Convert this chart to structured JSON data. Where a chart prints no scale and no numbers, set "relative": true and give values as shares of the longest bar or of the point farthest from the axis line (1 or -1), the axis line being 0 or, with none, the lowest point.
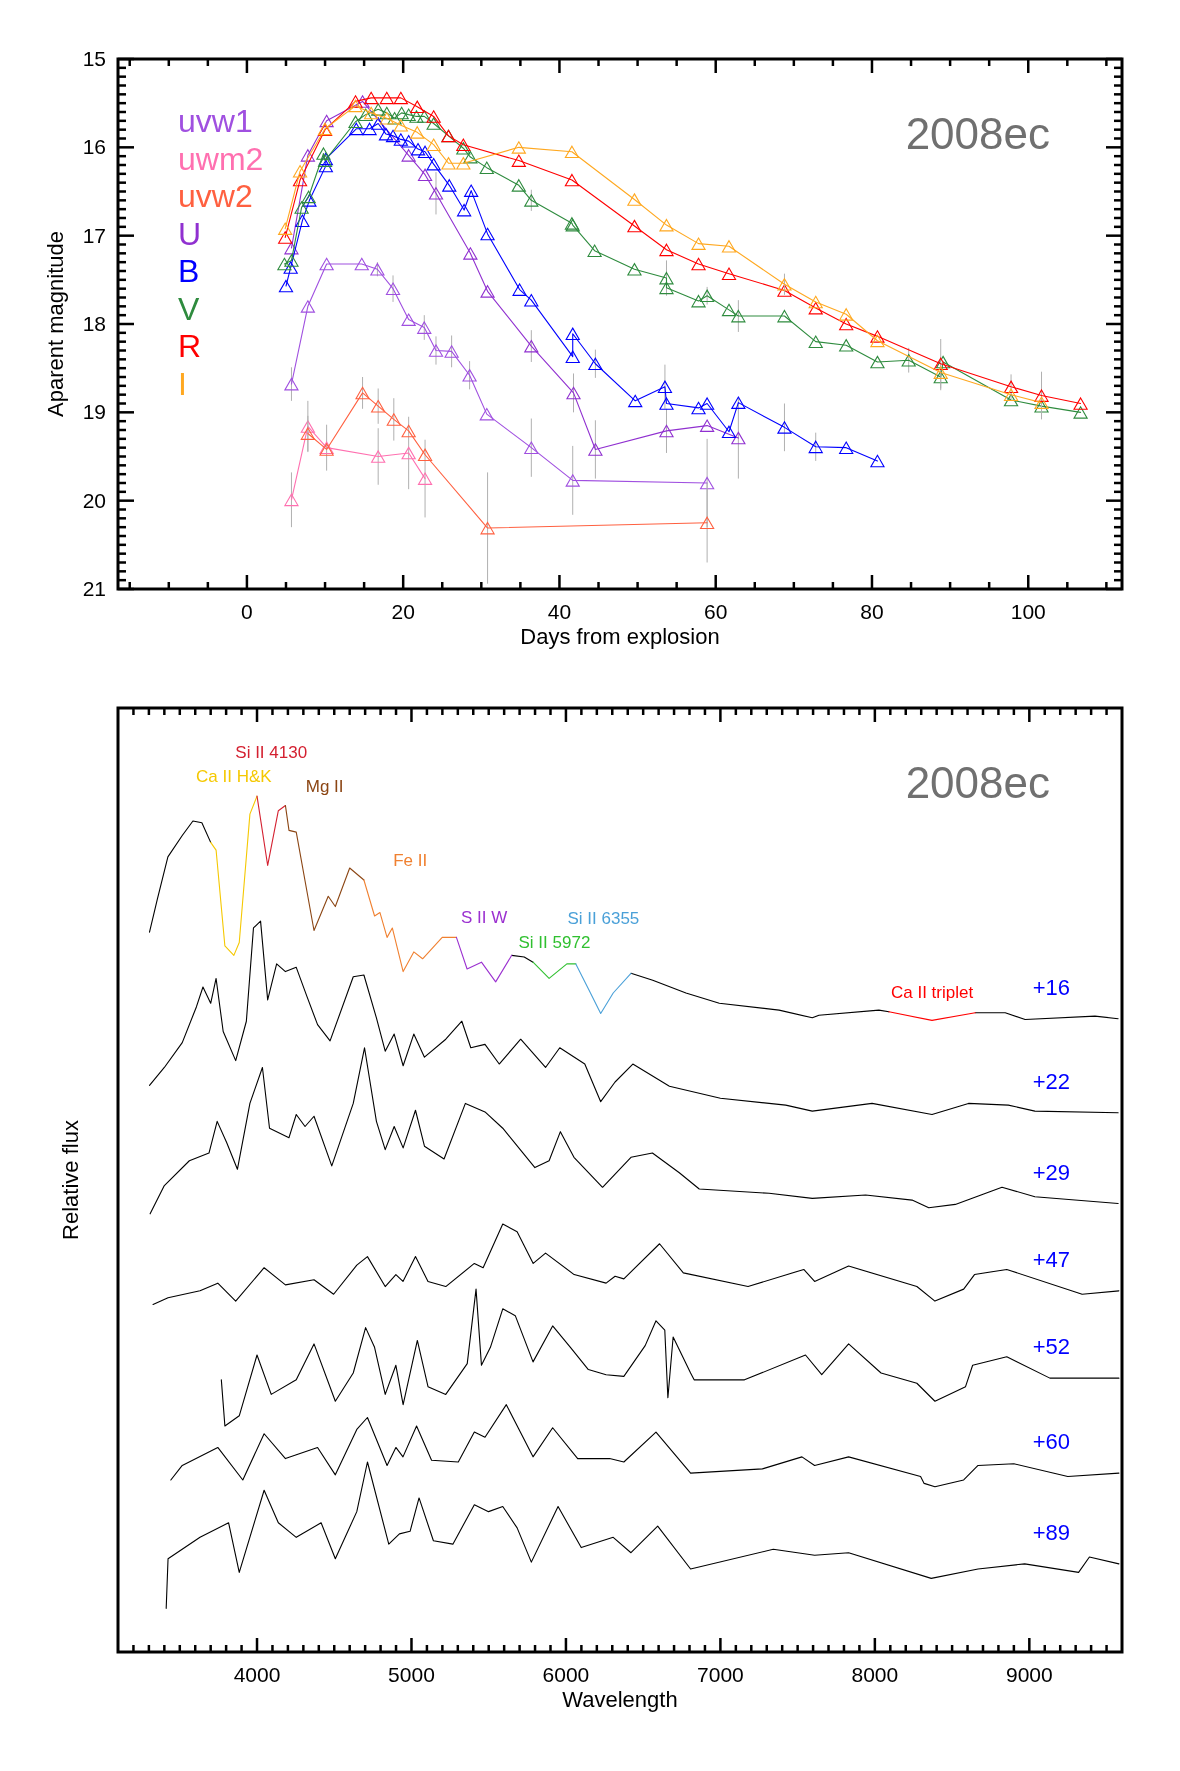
{
  "chart_data": [
    {
      "type": "line",
      "xlabel": "Days from explosion",
      "ylabel": "Aparent magnitude",
      "marker": "triangle",
      "legend": "top left",
      "xlim": [
        -16.5,
        112
      ],
      "ylim": [
        21,
        15
      ],
      "xticks": [
        {
          "value": -15,
          "label": null
        },
        {
          "value": -10,
          "label": null
        },
        {
          "value": -5,
          "label": null
        },
        0,
        {
          "value": 5,
          "label": null
        },
        {
          "value": 10,
          "label": null
        },
        {
          "value": 15,
          "label": null
        },
        20,
        {
          "value": 25,
          "label": null
        },
        {
          "value": 30,
          "label": null
        },
        {
          "value": 35,
          "label": null
        },
        40,
        {
          "value": 45,
          "label": null
        },
        {
          "value": 50,
          "label": null
        },
        {
          "value": 55,
          "label": null
        },
        60,
        {
          "value": 65,
          "label": null
        },
        {
          "value": 70,
          "label": null
        },
        {
          "value": 75,
          "label": null
        },
        80,
        {
          "value": 85,
          "label": null
        },
        {
          "value": 90,
          "label": null
        },
        {
          "value": 95,
          "label": null
        },
        100,
        {
          "value": 105,
          "label": null
        },
        {
          "value": 110,
          "label": null
        }
      ],
      "yticks": [
        15,
        {
          "value": 15.1,
          "label": null
        },
        {
          "value": 15.2,
          "label": null
        },
        {
          "value": 15.3,
          "label": null
        },
        {
          "value": 15.4,
          "label": null
        },
        {
          "value": 15.5,
          "label": null
        },
        {
          "value": 15.6,
          "label": null
        },
        {
          "value": 15.7,
          "label": null
        },
        {
          "value": 15.8,
          "label": null
        },
        {
          "value": 15.9,
          "label": null
        },
        16,
        {
          "value": 16.1,
          "label": null
        },
        {
          "value": 16.2,
          "label": null
        },
        {
          "value": 16.3,
          "label": null
        },
        {
          "value": 16.4,
          "label": null
        },
        {
          "value": 16.5,
          "label": null
        },
        {
          "value": 16.6,
          "label": null
        },
        {
          "value": 16.7,
          "label": null
        },
        {
          "value": 16.8,
          "label": null
        },
        {
          "value": 16.9,
          "label": null
        },
        17,
        {
          "value": 17.1,
          "label": null
        },
        {
          "value": 17.2,
          "label": null
        },
        {
          "value": 17.3,
          "label": null
        },
        {
          "value": 17.4,
          "label": null
        },
        {
          "value": 17.5,
          "label": null
        },
        {
          "value": 17.6,
          "label": null
        },
        {
          "value": 17.7,
          "label": null
        },
        {
          "value": 17.8,
          "label": null
        },
        {
          "value": 17.9,
          "label": null
        },
        18,
        {
          "value": 18.1,
          "label": null
        },
        {
          "value": 18.2,
          "label": null
        },
        {
          "value": 18.3,
          "label": null
        },
        {
          "value": 18.4,
          "label": null
        },
        {
          "value": 18.5,
          "label": null
        },
        {
          "value": 18.6,
          "label": null
        },
        {
          "value": 18.7,
          "label": null
        },
        {
          "value": 18.8,
          "label": null
        },
        {
          "value": 18.9,
          "label": null
        },
        19,
        {
          "value": 19.1,
          "label": null
        },
        {
          "value": 19.2,
          "label": null
        },
        {
          "value": 19.3,
          "label": null
        },
        {
          "value": 19.4,
          "label": null
        },
        {
          "value": 19.5,
          "label": null
        },
        {
          "value": 19.6,
          "label": null
        },
        {
          "value": 19.7,
          "label": null
        },
        {
          "value": 19.8,
          "label": null
        },
        {
          "value": 19.9,
          "label": null
        },
        20,
        {
          "value": 20.1,
          "label": null
        },
        {
          "value": 20.2,
          "label": null
        },
        {
          "value": 20.3,
          "label": null
        },
        {
          "value": 20.4,
          "label": null
        },
        {
          "value": 20.5,
          "label": null
        },
        {
          "value": 20.6,
          "label": null
        },
        {
          "value": 20.7,
          "label": null
        },
        {
          "value": 20.8,
          "label": null
        },
        {
          "value": 20.9,
          "label": null
        },
        21
      ],
      "annotations": [
        "2008ec"
      ],
      "series": [
        {
          "name": "uvw1",
          "color": "#a050e0",
          "x": [
            5.7,
            7.8,
            10.2,
            14.7,
            16.7,
            18.7,
            20.7,
            22.7,
            24.2,
            26.2,
            28.5,
            30.7,
            36.4,
            41.7,
            58.9
          ],
          "values": [
            18.68,
            17.8,
            17.32,
            17.32,
            17.38,
            17.6,
            17.95,
            18.04,
            18.3,
            18.31,
            18.58,
            19.02,
            19.4,
            19.77,
            19.8
          ],
          "errors": [
            0.19,
            null,
            null,
            null,
            0.08,
            0.15,
            null,
            0.14,
            0.16,
            0.18,
            0.16,
            null,
            0.33,
            0.39,
            0.5
          ]
        },
        {
          "name": "uwm2",
          "color": "#ff70b0",
          "x": [
            5.7,
            7.8,
            10.2,
            16.8,
            20.7,
            22.8
          ],
          "values": [
            19.99,
            19.16,
            19.4,
            19.5,
            19.46,
            19.75
          ],
          "errors": [
            0.31,
            0.29,
            0.26,
            0.32,
            0.41,
            0.44
          ]
        },
        {
          "name": "uvw2",
          "color": "#ff6040",
          "x": [
            7.8,
            10.2,
            14.8,
            16.8,
            18.8,
            20.7,
            22.8,
            30.8,
            58.9
          ],
          "values": [
            19.24,
            19.42,
            18.78,
            18.93,
            19.08,
            19.21,
            19.48,
            20.31,
            20.25
          ],
          "errors": [
            0.2,
            null,
            0.18,
            0.2,
            0.24,
            null,
            null,
            0.63,
            0.45
          ]
        },
        {
          "name": "U",
          "color": "#9030d0",
          "x": [
            5.7,
            7.8,
            10.2,
            14.8,
            20.7,
            22.8,
            24.2,
            28.6,
            30.8,
            36.4,
            41.8,
            44.6,
            53.7,
            58.9,
            62.9
          ],
          "values": [
            17.14,
            16.09,
            15.7,
            15.48,
            16.09,
            16.31,
            16.52,
            17.2,
            17.63,
            18.25,
            18.78,
            19.42,
            19.21,
            19.15,
            19.29
          ],
          "errors": [
            null,
            null,
            null,
            null,
            null,
            null,
            0.24,
            null,
            null,
            0.18,
            0.22,
            0.33,
            0.25,
            null,
            0.46
          ]
        },
        {
          "name": "B",
          "color": "#0000ff",
          "x": [
            5.0,
            5.6,
            7.1,
            8.0,
            10.1,
            10.1,
            14.0,
            15.7,
            16.8,
            17.8,
            18.7,
            19.7,
            20.7,
            21.9,
            22.8,
            23.9,
            25.9,
            27.8,
            28.7,
            30.8,
            34.9,
            36.4,
            41.7,
            41.7,
            44.6,
            49.7,
            53.5,
            53.7,
            57.8,
            58.9,
            61.7,
            62.9,
            68.8,
            72.8,
            76.7,
            80.7
          ],
          "values": [
            17.57,
            17.36,
            16.83,
            16.6,
            16.21,
            16.13,
            15.79,
            15.79,
            15.73,
            15.85,
            15.87,
            15.91,
            15.93,
            16.02,
            16.05,
            16.19,
            16.43,
            16.71,
            16.49,
            16.98,
            17.61,
            17.73,
            18.37,
            18.11,
            18.45,
            18.87,
            18.71,
            18.9,
            18.95,
            18.9,
            19.22,
            18.89,
            19.17,
            19.39,
            19.4,
            19.55
          ],
          "errors": [
            null,
            null,
            null,
            null,
            null,
            null,
            null,
            null,
            null,
            null,
            null,
            null,
            null,
            null,
            null,
            null,
            null,
            null,
            null,
            null,
            null,
            null,
            null,
            null,
            0.16,
            null,
            0.25,
            null,
            null,
            null,
            null,
            null,
            0.27,
            0.16,
            null,
            null
          ]
        },
        {
          "name": "V",
          "color": "#2e8b3e",
          "x": [
            4.8,
            5.7,
            7.0,
            7.9,
            9.8,
            10.0,
            13.9,
            15.2,
            16.8,
            17.9,
            18.9,
            19.8,
            20.7,
            21.7,
            22.7,
            23.9,
            25.8,
            27.7,
            28.6,
            30.7,
            34.8,
            36.4,
            41.6,
            41.7,
            44.5,
            49.6,
            53.7,
            53.7,
            57.8,
            58.9,
            61.7,
            62.9,
            68.8,
            72.8,
            76.7,
            80.7,
            84.7,
            88.8,
            89.1,
            97.8,
            101.7,
            106.7
          ],
          "values": [
            17.32,
            17.28,
            16.68,
            16.56,
            16.07,
            16.15,
            15.71,
            15.63,
            15.57,
            15.61,
            15.67,
            15.61,
            15.63,
            15.65,
            15.65,
            15.73,
            15.87,
            16.01,
            16.11,
            16.23,
            16.43,
            16.6,
            16.86,
            16.88,
            17.17,
            17.38,
            17.48,
            17.59,
            17.74,
            17.68,
            17.84,
            17.91,
            17.91,
            18.2,
            18.24,
            18.43,
            18.41,
            18.6,
            18.43,
            18.86,
            18.93,
            19.0
          ],
          "errors": [
            null,
            null,
            null,
            null,
            null,
            null,
            null,
            null,
            null,
            null,
            null,
            null,
            null,
            null,
            null,
            null,
            null,
            null,
            null,
            null,
            null,
            0.12,
            null,
            null,
            null,
            null,
            0.2,
            null,
            null,
            0.1,
            null,
            0.18,
            null,
            null,
            null,
            null,
            0.14,
            0.15,
            null,
            null,
            null,
            null
          ]
        },
        {
          "name": "R",
          "color": "#ff0000",
          "x": [
            4.9,
            6.8,
            10.0,
            13.9,
            15.9,
            17.9,
            19.7,
            21.8,
            23.9,
            25.8,
            27.7,
            34.8,
            41.6,
            49.6,
            53.7,
            57.8,
            61.7,
            68.8,
            72.8,
            76.7,
            80.7,
            88.8,
            97.8,
            101.7,
            106.7
          ],
          "values": [
            17.02,
            16.37,
            15.8,
            15.48,
            15.44,
            15.44,
            15.44,
            15.54,
            15.65,
            15.87,
            15.97,
            16.15,
            16.37,
            16.89,
            17.16,
            17.32,
            17.43,
            17.62,
            17.82,
            18.0,
            18.14,
            18.45,
            18.71,
            18.81,
            18.9
          ],
          "errors": [
            null,
            null,
            null,
            null,
            null,
            null,
            null,
            null,
            null,
            null,
            null,
            null,
            null,
            null,
            null,
            null,
            null,
            null,
            null,
            null,
            null,
            0.28,
            0.14,
            0.27,
            null
          ]
        },
        {
          "name": "I",
          "color": "#ffa820",
          "x": [
            4.9,
            6.8,
            10.0,
            13.9,
            15.9,
            17.9,
            19.7,
            21.8,
            23.9,
            25.8,
            27.7,
            34.8,
            41.6,
            49.6,
            53.7,
            57.8,
            61.7,
            68.8,
            72.8,
            76.7,
            80.7,
            88.8,
            97.8,
            101.7
          ],
          "values": [
            16.92,
            16.27,
            15.79,
            15.53,
            15.61,
            15.67,
            15.75,
            15.83,
            15.97,
            16.18,
            16.18,
            16.0,
            16.05,
            16.59,
            16.88,
            17.09,
            17.12,
            17.55,
            17.75,
            17.89,
            18.19,
            18.55,
            18.8,
            18.89
          ],
          "errors": [
            null,
            null,
            null,
            null,
            null,
            null,
            null,
            null,
            null,
            null,
            null,
            null,
            null,
            null,
            null,
            null,
            null,
            0.12,
            null,
            null,
            null,
            null,
            null,
            null
          ]
        }
      ]
    },
    {
      "type": "line",
      "xlabel": "Wavelength",
      "ylabel": "Relative flux",
      "relative": true,
      "xlim": [
        3100,
        9600
      ],
      "xticks": [
        {
          "value": 3200,
          "label": null
        },
        {
          "value": 3300,
          "label": null
        },
        {
          "value": 3400,
          "label": null
        },
        {
          "value": 3500,
          "label": null
        },
        {
          "value": 3600,
          "label": null
        },
        {
          "value": 3700,
          "label": null
        },
        {
          "value": 3800,
          "label": null
        },
        {
          "value": 3900,
          "label": null
        },
        4000,
        {
          "value": 4100,
          "label": null
        },
        {
          "value": 4200,
          "label": null
        },
        {
          "value": 4300,
          "label": null
        },
        {
          "value": 4400,
          "label": null
        },
        {
          "value": 4500,
          "label": null
        },
        {
          "value": 4600,
          "label": null
        },
        {
          "value": 4700,
          "label": null
        },
        {
          "value": 4800,
          "label": null
        },
        {
          "value": 4900,
          "label": null
        },
        5000,
        {
          "value": 5100,
          "label": null
        },
        {
          "value": 5200,
          "label": null
        },
        {
          "value": 5300,
          "label": null
        },
        {
          "value": 5400,
          "label": null
        },
        {
          "value": 5500,
          "label": null
        },
        {
          "value": 5600,
          "label": null
        },
        {
          "value": 5700,
          "label": null
        },
        {
          "value": 5800,
          "label": null
        },
        {
          "value": 5900,
          "label": null
        },
        6000,
        {
          "value": 6100,
          "label": null
        },
        {
          "value": 6200,
          "label": null
        },
        {
          "value": 6300,
          "label": null
        },
        {
          "value": 6400,
          "label": null
        },
        {
          "value": 6500,
          "label": null
        },
        {
          "value": 6600,
          "label": null
        },
        {
          "value": 6700,
          "label": null
        },
        {
          "value": 6800,
          "label": null
        },
        {
          "value": 6900,
          "label": null
        },
        7000,
        {
          "value": 7100,
          "label": null
        },
        {
          "value": 7200,
          "label": null
        },
        {
          "value": 7300,
          "label": null
        },
        {
          "value": 7400,
          "label": null
        },
        {
          "value": 7500,
          "label": null
        },
        {
          "value": 7600,
          "label": null
        },
        {
          "value": 7700,
          "label": null
        },
        {
          "value": 7800,
          "label": null
        },
        {
          "value": 7900,
          "label": null
        },
        8000,
        {
          "value": 8100,
          "label": null
        },
        {
          "value": 8200,
          "label": null
        },
        {
          "value": 8300,
          "label": null
        },
        {
          "value": 8400,
          "label": null
        },
        {
          "value": 8500,
          "label": null
        },
        {
          "value": 8600,
          "label": null
        },
        {
          "value": 8700,
          "label": null
        },
        {
          "value": 8800,
          "label": null
        },
        {
          "value": 8900,
          "label": null
        },
        9000,
        {
          "value": 9100,
          "label": null
        },
        {
          "value": 9200,
          "label": null
        },
        {
          "value": 9300,
          "label": null
        },
        {
          "value": 9400,
          "label": null
        },
        {
          "value": 9500,
          "label": null
        }
      ],
      "annotations": [
        "2008ec"
      ],
      "series": [
        {
          "name": "+16",
          "color": "#000000",
          "x": [
            3304,
            3354,
            3423,
            3516,
            3585,
            3643,
            3700,
            3735,
            5649,
            5730,
            5787,
            5891,
            6421,
            6562,
            6777,
            6993,
            7380,
            7595,
            7638,
            8026,
            8091,
            8370,
            8650,
            8844,
            8973,
            9425,
            9575
          ],
          "values": [
            0.841,
            0.879,
            0.929,
            0.954,
            0.971,
            0.969,
            0.946,
            null,
            0.814,
            0.812,
            0.806,
            null,
            0.793,
            0.785,
            0.77,
            0.758,
            0.75,
            0.741,
            0.744,
            0.75,
            0.748,
            null,
            0.747,
            0.747,
            0.739,
            0.743,
            0.74
          ]
        },
        {
          "name": "+22",
          "color": "#000000",
          "x": [
            3304,
            3400,
            3516,
            3608,
            3650,
            3700,
            3735,
            3781,
            3862,
            3931,
            3977,
            4023,
            4069,
            4127,
            4184,
            4254,
            4323,
            4392,
            4473,
            4623,
            4692,
            4773,
            4830,
            4888,
            4946,
            5015,
            5084,
            5222,
            5326,
            5384,
            5476,
            5568,
            5707,
            5868,
            5960,
            6122,
            6225,
            6318,
            6433,
            6670,
            7000,
            7423,
            7595,
            7982,
            8370,
            8606,
            8864,
            9036,
            9575
          ],
          "values": [
            0.662,
            0.683,
            0.712,
            0.754,
            0.777,
            0.758,
            0.787,
            0.725,
            0.691,
            0.737,
            0.846,
            0.854,
            0.762,
            0.804,
            0.795,
            0.8,
            0.766,
            0.733,
            0.714,
            0.789,
            0.791,
            0.741,
            0.702,
            0.722,
            0.685,
            0.722,
            0.695,
            0.716,
            0.737,
            0.706,
            0.71,
            0.687,
            0.716,
            0.683,
            0.706,
            0.687,
            0.643,
            0.666,
            0.687,
            0.661,
            0.647,
            0.639,
            0.632,
            0.641,
            0.628,
            0.641,
            0.639,
            0.632,
            0.63
          ]
        },
        {
          "name": "+29",
          "color": "#000000",
          "x": [
            3308,
            3400,
            3562,
            3689,
            3742,
            3804,
            3873,
            3954,
            4035,
            4081,
            4207,
            4254,
            4311,
            4369,
            4484,
            4623,
            4696,
            4773,
            4830,
            4888,
            4946,
            5026,
            5084,
            5211,
            5349,
            5476,
            5591,
            5799,
            5891,
            5964,
            6052,
            6237,
            6421,
            6560,
            6734,
            6863,
            7315,
            7595,
            7940,
            8241,
            8349,
            8521,
            8823,
            9036,
            9575
          ],
          "values": [
            0.512,
            0.545,
            0.574,
            0.583,
            0.62,
            0.595,
            0.564,
            0.641,
            0.683,
            0.612,
            0.601,
            0.628,
            0.614,
            0.626,
            0.568,
            0.641,
            0.706,
            0.62,
            0.587,
            0.614,
            0.589,
            0.633,
            0.591,
            0.576,
            0.641,
            0.631,
            0.612,
            0.566,
            0.574,
            0.608,
            0.578,
            0.543,
            0.578,
            0.583,
            0.56,
            0.541,
            0.536,
            0.53,
            0.534,
            0.528,
            0.519,
            0.523,
            0.543,
            0.532,
            0.524
          ]
        },
        {
          "name": "+47",
          "color": "#000000",
          "x": [
            3327,
            3424,
            3631,
            3746,
            3862,
            4046,
            4184,
            4369,
            4496,
            4646,
            4715,
            4830,
            4899,
            4945,
            5026,
            5107,
            5222,
            5407,
            5464,
            5591,
            5684,
            5788,
            5868,
            6053,
            6260,
            6318,
            6375,
            6606,
            6760,
            7179,
            7540,
            7610,
            7830,
            8272,
            8389,
            8575,
            8645,
            8854,
            9342,
            9580
          ],
          "values": [
            0.406,
            0.414,
            0.422,
            0.431,
            0.41,
            0.449,
            0.429,
            0.435,
            0.418,
            0.452,
            0.462,
            0.427,
            0.441,
            0.433,
            0.462,
            0.433,
            0.427,
            0.454,
            0.449,
            0.5,
            0.491,
            0.454,
            0.466,
            0.441,
            0.431,
            0.439,
            0.436,
            0.477,
            0.443,
            0.427,
            0.447,
            0.433,
            0.451,
            0.427,
            0.41,
            0.424,
            0.441,
            0.447,
            0.418,
            0.422
          ]
        },
        {
          "name": "+52",
          "color": "#000000",
          "x": [
            3769,
            3792,
            3885,
            4000,
            4092,
            4254,
            4369,
            4507,
            4623,
            4703,
            4761,
            4830,
            4899,
            4946,
            5038,
            5107,
            5222,
            5361,
            5418,
            5453,
            5511,
            5591,
            5672,
            5787,
            5914,
            6029,
            6145,
            6260,
            6375,
            6513,
            6583,
            6640,
            6660,
            6694,
            6807,
            6830,
            7156,
            7551,
            7656,
            7830,
            8040,
            8272,
            8389,
            8587,
            8633,
            8854,
            9133,
            9580
          ],
          "values": [
            0.318,
            0.264,
            0.276,
            0.347,
            0.301,
            0.318,
            0.36,
            0.293,
            0.326,
            0.379,
            0.356,
            0.301,
            0.335,
            0.289,
            0.364,
            0.31,
            0.301,
            0.337,
            0.424,
            0.335,
            0.356,
            0.401,
            0.393,
            0.339,
            0.381,
            0.356,
            0.33,
            0.324,
            0.322,
            0.358,
            0.387,
            0.376,
            0.297,
            0.368,
            0.326,
            0.318,
            0.318,
            0.347,
            0.324,
            0.36,
            0.326,
            0.314,
            0.293,
            0.31,
            0.335,
            0.345,
            0.32,
            0.32
          ]
        },
        {
          "name": "+60",
          "color": "#000000",
          "x": [
            3442,
            3516,
            3746,
            3908,
            4046,
            4184,
            4392,
            4507,
            4646,
            4715,
            4842,
            4899,
            4945,
            5033,
            5130,
            5303,
            5407,
            5476,
            5614,
            5787,
            5914,
            6076,
            6283,
            6375,
            6583,
            6807,
            7272,
            7528,
            7610,
            7830,
            8296,
            8319,
            8389,
            8575,
            8668,
            8900,
            9249,
            9580
          ],
          "values": [
            0.201,
            0.218,
            0.239,
            0.201,
            0.255,
            0.226,
            0.239,
            0.207,
            0.26,
            0.274,
            0.218,
            0.239,
            0.228,
            0.264,
            0.224,
            0.222,
            0.257,
            0.251,
            0.289,
            0.228,
            0.262,
            0.226,
            0.226,
            0.222,
            0.257,
            0.209,
            0.214,
            0.228,
            0.218,
            0.228,
            0.205,
            0.197,
            0.193,
            0.201,
            0.218,
            0.22,
            0.205,
            0.209
          ]
        },
        {
          "name": "+89",
          "color": "#000000",
          "x": [
            3412,
            3424,
            3631,
            3816,
            3885,
            4046,
            4138,
            4254,
            4415,
            4507,
            4646,
            4715,
            4853,
            4922,
            4991,
            5049,
            5142,
            5268,
            5407,
            5499,
            5591,
            5684,
            5776,
            5949,
            6099,
            6306,
            6421,
            6594,
            6807,
            7342,
            7610,
            7830,
            8365,
            8668,
            8970,
            9319,
            9389,
            9580
          ],
          "values": [
            0.051,
            0.109,
            0.134,
            0.151,
            0.093,
            0.189,
            0.151,
            0.134,
            0.151,
            0.109,
            0.164,
            0.222,
            0.126,
            0.138,
            0.141,
            0.18,
            0.13,
            0.126,
            0.172,
            0.164,
            0.17,
            0.145,
            0.105,
            0.17,
            0.122,
            0.134,
            0.116,
            0.147,
            0.097,
            0.12,
            0.113,
            0.116,
            0.086,
            0.097,
            0.103,
            0.093,
            0.111,
            0.103
          ]
        },
        {
          "name": "Ca II H&K",
          "color": "#f5c800",
          "x": [
            3700,
            3735,
            3792,
            3850,
            3885,
            3954,
            4000
          ],
          "values": [
            0.946,
            0.937,
            0.825,
            0.814,
            0.829,
            0.979,
            1.0
          ]
        },
        {
          "name": "Si II 4130",
          "color": "#d42030",
          "x": [
            4000,
            4069,
            4138,
            4184
          ],
          "values": [
            1.0,
            0.919,
            0.983,
            0.989
          ]
        },
        {
          "name": "Mg II",
          "color": "#8b4513",
          "x": [
            4184,
            4207,
            4254,
            4369,
            4461,
            4507,
            4600,
            4692
          ],
          "values": [
            0.989,
            0.96,
            0.958,
            0.843,
            0.883,
            0.871,
            0.916,
            0.902
          ]
        },
        {
          "name": "Fe II",
          "color": "#f08030",
          "x": [
            4692,
            4761,
            4796,
            4842,
            4876,
            4946,
            5015,
            5072,
            5199,
            5291
          ],
          "values": [
            0.902,
            0.86,
            0.864,
            0.835,
            0.846,
            0.795,
            0.818,
            0.81,
            0.835,
            0.835
          ]
        },
        {
          "name": "S II W",
          "color": "#9b30d0",
          "x": [
            5291,
            5360,
            5453,
            5545,
            5649
          ],
          "values": [
            0.835,
            0.798,
            0.806,
            0.783,
            0.814
          ]
        },
        {
          "name": "Si II 5972",
          "color": "#30c030",
          "x": [
            5787,
            5891,
            6006,
            6064
          ],
          "values": [
            0.806,
            0.787,
            0.804,
            0.804
          ]
        },
        {
          "name": "Si II 6355",
          "color": "#4aa0d8",
          "x": [
            6064,
            6145,
            6225,
            6306,
            6421
          ],
          "values": [
            0.804,
            0.775,
            0.746,
            0.77,
            0.793
          ]
        },
        {
          "name": "Ca II triplet",
          "color": "#ff0000",
          "x": [
            8091,
            8370,
            8650
          ],
          "values": [
            0.748,
            0.738,
            0.747
          ]
        }
      ]
    }
  ]
}
